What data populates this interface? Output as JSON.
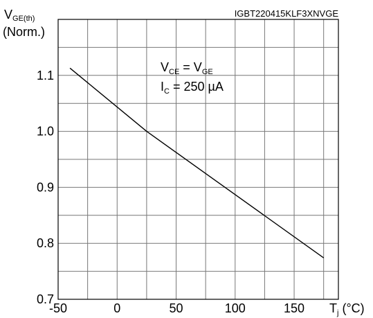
{
  "chart_data": {
    "type": "line",
    "part_number": "IGBT220415KLF3XNVGE",
    "ylabel": {
      "main": "V",
      "sub": "GE(th)",
      "line2": "(Norm.)"
    },
    "xlabel": {
      "main": "T",
      "sub": "j",
      "unit": " (°C)"
    },
    "annotation": {
      "line1": {
        "a": "V",
        "a_sub": "CE",
        "mid": " = V",
        "b_sub": "GE"
      },
      "line2": {
        "a": "I",
        "a_sub": "C",
        "rest": " = 250 µA"
      }
    },
    "xlim": [
      -50,
      187.5
    ],
    "ylim": [
      0.7,
      1.2
    ],
    "x_ticks": [
      -50,
      0,
      50,
      100,
      150
    ],
    "x_tick_labels": [
      "-50",
      "0",
      "50",
      "100",
      "150"
    ],
    "y_ticks": [
      0.7,
      0.8,
      0.9,
      1.0,
      1.1
    ],
    "y_tick_labels": [
      "0.7",
      "0.8",
      "0.9",
      "1.0",
      "1.1"
    ],
    "x_grid_step": 25,
    "y_grid_step": 0.05,
    "grid": true,
    "series": [
      {
        "x": [
          -40,
          25,
          175
        ],
        "y": [
          1.113,
          1.0,
          0.774
        ]
      }
    ]
  }
}
